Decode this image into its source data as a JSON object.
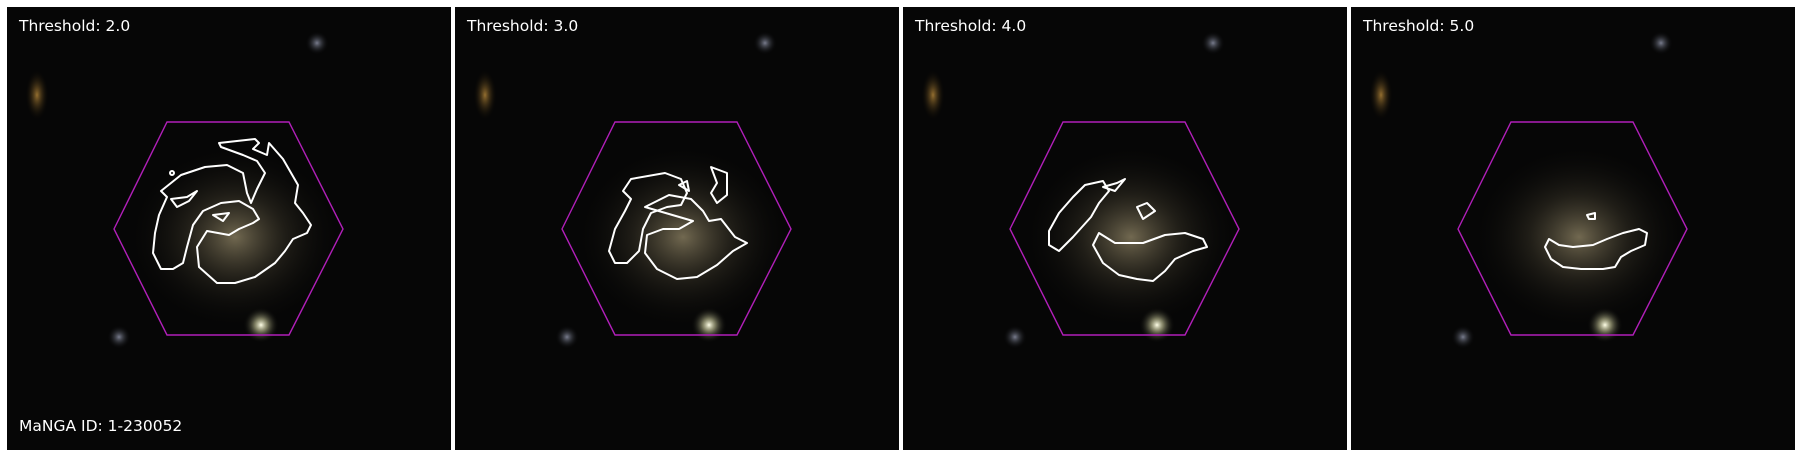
{
  "figure": {
    "panels": [
      {
        "threshold_label": "Threshold: 2.0",
        "threshold": 2.0
      },
      {
        "threshold_label": "Threshold: 3.0",
        "threshold": 3.0
      },
      {
        "threshold_label": "Threshold: 4.0",
        "threshold": 4.0
      },
      {
        "threshold_label": "Threshold: 5.0",
        "threshold": 5.0
      }
    ],
    "galaxy_id_label": "MaNGA ID: 1-230052"
  },
  "colors": {
    "background": "#050505",
    "hexagon": "#b01fb8",
    "contour": "#ffffff",
    "label_text": "#ffffff"
  }
}
